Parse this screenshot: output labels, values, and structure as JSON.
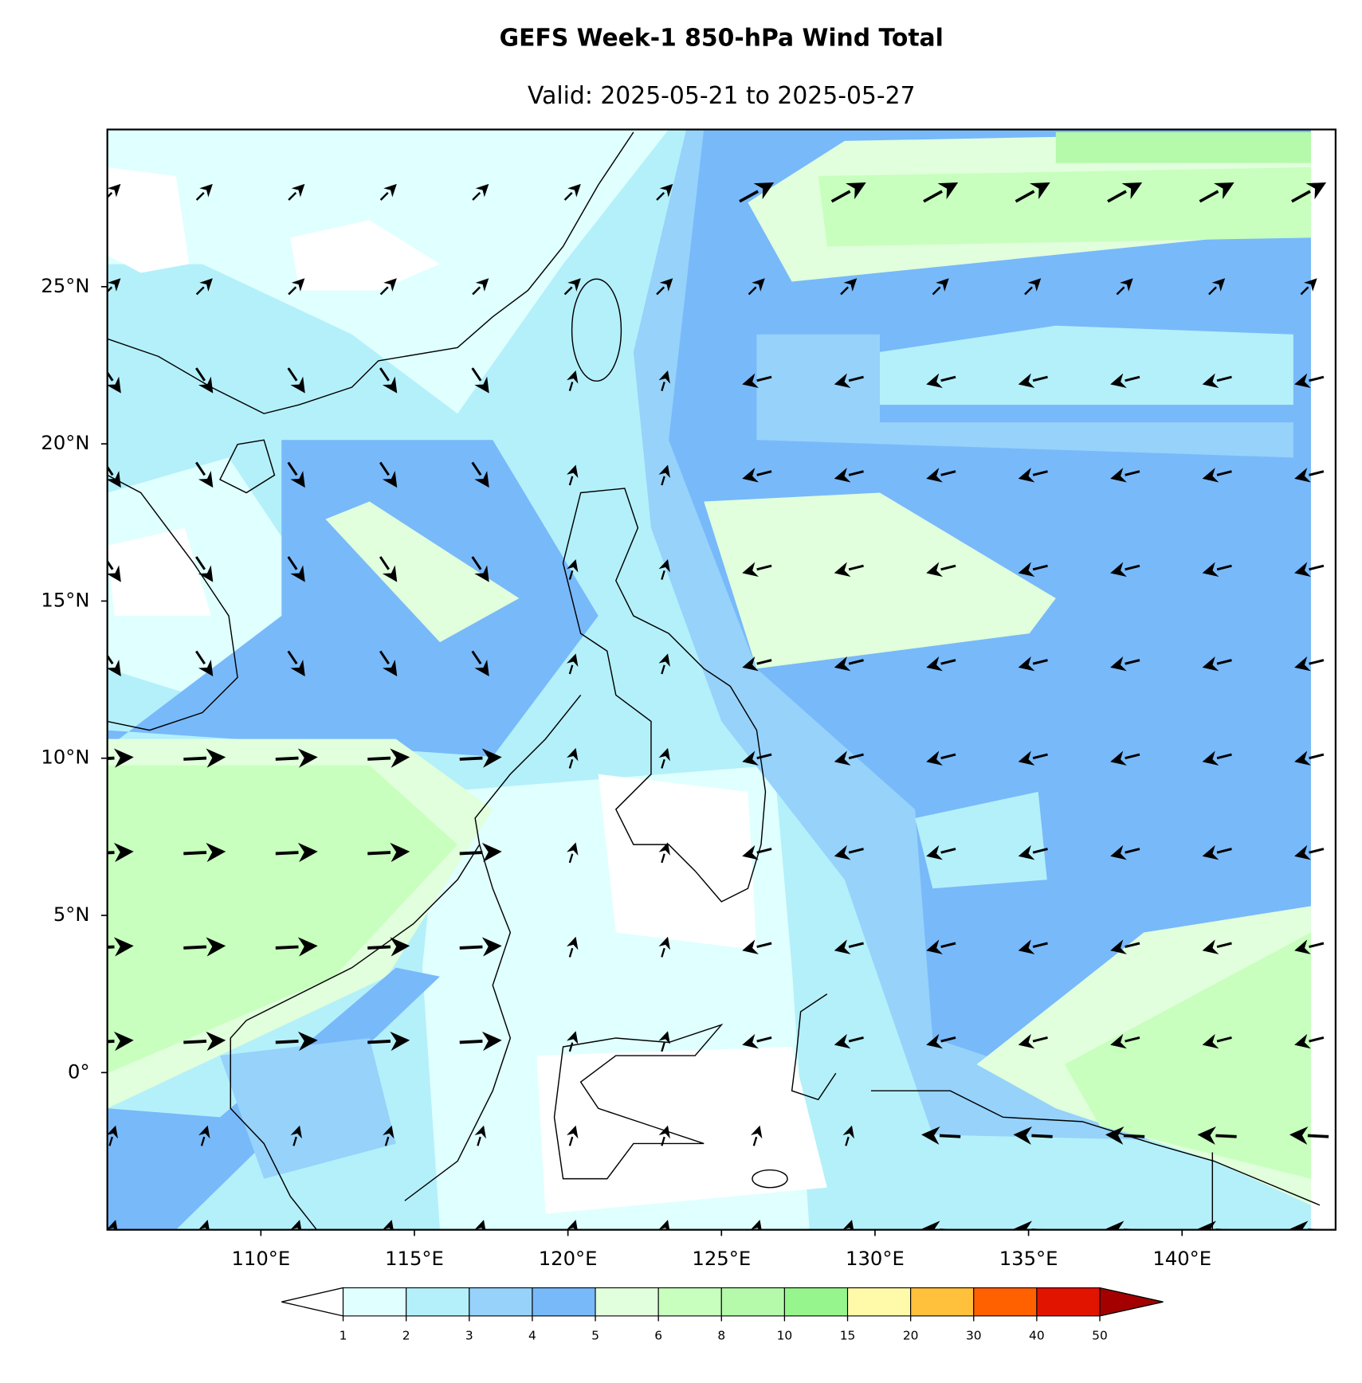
{
  "map": {
    "title": "GEFS Week-1 850-hPa Wind Total",
    "subtitle": "Valid: 2025-05-21 to 2025-05-27",
    "xlim": [
      105,
      145
    ],
    "ylim": [
      -5,
      30
    ],
    "xticks": [
      {
        "value": 110,
        "label": "110°E"
      },
      {
        "value": 115,
        "label": "115°E"
      },
      {
        "value": 120,
        "label": "120°E"
      },
      {
        "value": 125,
        "label": "125°E"
      },
      {
        "value": 130,
        "label": "130°E"
      },
      {
        "value": 135,
        "label": "135°E"
      },
      {
        "value": 140,
        "label": "140°E"
      }
    ],
    "yticks": [
      {
        "value": 0,
        "label": "0°"
      },
      {
        "value": 5,
        "label": "5°N"
      },
      {
        "value": 10,
        "label": "10°N"
      },
      {
        "value": 15,
        "label": "15°N"
      },
      {
        "value": 20,
        "label": "20°N"
      },
      {
        "value": 25,
        "label": "25°N"
      }
    ]
  },
  "colorbar": {
    "levels": [
      1,
      2,
      3,
      4,
      5,
      6,
      8,
      10,
      15,
      20,
      30,
      40,
      50
    ],
    "colors": [
      "#e0ffff",
      "#b4f0fa",
      "#96d2fa",
      "#78b9fa",
      "#e1ffdc",
      "#c8ffbe",
      "#b4faaa",
      "#96f58c",
      "#fffaaa",
      "#ffc03c",
      "#ff6000",
      "#e11400"
    ],
    "under_color": "#ffffff",
    "over_color": "#a50000"
  }
}
